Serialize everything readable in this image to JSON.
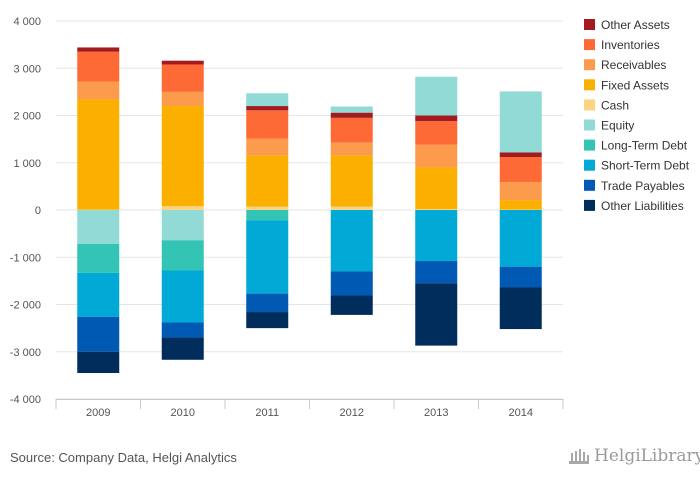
{
  "source": "Source: Company Data, Helgi Analytics",
  "logo_text": "HelgiLibrary",
  "chart_data": {
    "type": "bar",
    "stacked": true,
    "title": "",
    "xlabel": "",
    "ylabel": "",
    "ylim": [
      -4000,
      4000
    ],
    "yticks": [
      4000,
      3000,
      2000,
      1000,
      0,
      -1000,
      -2000,
      -3000,
      -4000
    ],
    "ytick_labels": [
      "4 000",
      "3 000",
      "2 000",
      "1 000",
      "0",
      "-1 000",
      "-2 000",
      "-3 000",
      "-4 000"
    ],
    "grid": true,
    "legend_position": "right",
    "categories": [
      "2009",
      "2010",
      "2011",
      "2012",
      "2013",
      "2014"
    ],
    "legend": [
      "Other Assets",
      "Inventories",
      "Receivables",
      "Fixed Assets",
      "Cash",
      "Equity",
      "Long-Term Debt",
      "Short-Term Debt",
      "Trade Payables",
      "Other Liabilities"
    ],
    "series": [
      {
        "name": "Cash",
        "color": "#fdd482",
        "values": [
          10,
          80,
          70,
          70,
          20,
          10
        ]
      },
      {
        "name": "Fixed Assets",
        "color": "#fbb000",
        "values": [
          2330,
          2120,
          1080,
          1080,
          880,
          200
        ]
      },
      {
        "name": "Receivables",
        "color": "#fd9b4c",
        "values": [
          380,
          300,
          360,
          280,
          480,
          380
        ]
      },
      {
        "name": "Inventories",
        "color": "#fe6a35",
        "values": [
          630,
          580,
          600,
          520,
          500,
          530
        ]
      },
      {
        "name": "Other Assets",
        "color": "#a31b1e",
        "values": [
          90,
          80,
          90,
          110,
          120,
          100
        ]
      },
      {
        "name": "Equity",
        "color": "#91dad5",
        "values": [
          -720,
          -640,
          270,
          130,
          820,
          1290
        ]
      },
      {
        "name": "Long-Term Debt",
        "color": "#33c4b6",
        "values": [
          -610,
          -640,
          -220,
          0,
          0,
          0
        ]
      },
      {
        "name": "Short-Term Debt",
        "color": "#00a9d6",
        "values": [
          -930,
          -1100,
          -1550,
          -1300,
          -1080,
          -1200
        ]
      },
      {
        "name": "Trade Payables",
        "color": "#0059b2",
        "values": [
          -740,
          -320,
          -390,
          -510,
          -470,
          -440
        ]
      },
      {
        "name": "Other Liabilities",
        "color": "#002d5c",
        "values": [
          -450,
          -470,
          -340,
          -410,
          -1320,
          -880
        ]
      }
    ]
  }
}
